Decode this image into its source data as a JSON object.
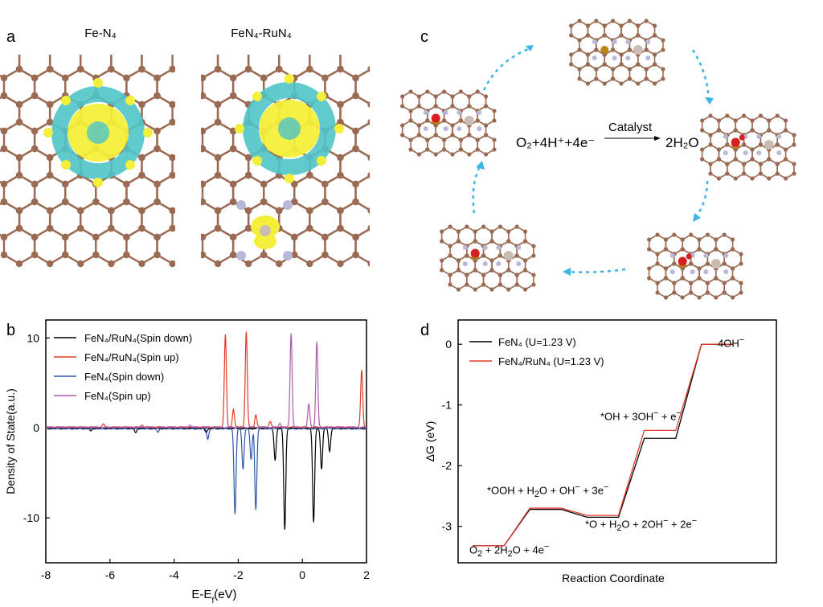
{
  "panels": {
    "a": "a",
    "b": "b",
    "c": "c",
    "d": "d"
  },
  "panel_a": {
    "left_title": "Fe-N₄",
    "right_title": "FeN₄-RuN₄"
  },
  "panel_c": {
    "reaction_left": "O₂+4H⁺+4e⁻",
    "catalyst": "Catalyst",
    "reaction_right": "2H₂O"
  },
  "colors": {
    "carbon": "#9a6b52",
    "nitrogen": "#b8b8d8",
    "metal": "#c9bcb5",
    "fe": "#b8860b",
    "oxygen": "#d42020",
    "yellow_iso": "#f3ef3a",
    "cyan_iso": "#4fc4c8",
    "arrow": "#3cb4e6"
  },
  "chart_data": [
    {
      "type": "line",
      "xlabel": "E-E_f(eV)",
      "ylabel": "Density of State(a.u.)",
      "xlim": [
        -8,
        2
      ],
      "ylim": [
        -15,
        12
      ],
      "xticks": [
        -8,
        -6,
        -4,
        -2,
        0,
        2
      ],
      "yticks": [
        10,
        0,
        -10
      ],
      "legend_position": "top-left",
      "series": [
        {
          "name": "FeN₄/RuN₄(Spin down)",
          "color": "#000000",
          "peaks": [
            [
              -0.55,
              -11.2
            ],
            [
              0.35,
              -10.5
            ],
            [
              -0.85,
              -3.5
            ],
            [
              0.6,
              -4.5
            ],
            [
              0.85,
              -2.5
            ],
            [
              -3.0,
              -0.4
            ],
            [
              -5.2,
              -0.5
            ],
            [
              -6.6,
              -0.3
            ]
          ]
        },
        {
          "name": "FeN₄/RuN₄(Spin up)",
          "color": "#e03c28",
          "peaks": [
            [
              -2.4,
              10.3
            ],
            [
              -1.75,
              10.6
            ],
            [
              -2.15,
              2.0
            ],
            [
              -1.45,
              1.4
            ],
            [
              -1.0,
              0.6
            ],
            [
              1.85,
              6.3
            ],
            [
              -6.2,
              0.35
            ],
            [
              -5.0,
              0.3
            ]
          ]
        },
        {
          "name": "FeN₄(Spin down)",
          "color": "#2e57a8",
          "peaks": [
            [
              -2.1,
              -9.5
            ],
            [
              -1.45,
              -9.0
            ],
            [
              -1.85,
              -4.5
            ],
            [
              -1.6,
              -3.5
            ],
            [
              -2.95,
              -1.2
            ],
            [
              -4.5,
              -0.4
            ]
          ]
        },
        {
          "name": "FeN₄(Spin up)",
          "color": "#b05ab0",
          "peaks": [
            [
              -0.35,
              10.5
            ],
            [
              0.45,
              9.5
            ],
            [
              0.2,
              2.5
            ],
            [
              -0.7,
              0.5
            ],
            [
              -3.5,
              0.3
            ]
          ]
        }
      ]
    },
    {
      "type": "line",
      "xlabel": "Reaction Coordinate",
      "ylabel": "ΔG (eV)",
      "ylim": [
        -3.6,
        0.4
      ],
      "yticks": [
        0,
        -1,
        -2,
        -3
      ],
      "legend_position": "top-left",
      "series": [
        {
          "name": "FeN₄ (U=1.23 V)",
          "color": "#000000",
          "values": [
            -3.32,
            -2.72,
            -2.85,
            -1.55,
            0.0
          ]
        },
        {
          "name": "FeN₄/RuN₄ (U=1.23 V)",
          "color": "#e03c28",
          "values": [
            -3.32,
            -2.7,
            -2.82,
            -1.42,
            0.0
          ]
        }
      ],
      "annotations": [
        {
          "html": "O<sub>2</sub> + 2H<sub>2</sub>O + 4e<sup>−</sup>",
          "text": "O2 + 2H2O + 4e−"
        },
        {
          "html": "*OOH + H<sub>2</sub>O + OH<sup>−</sup> + 3e<sup>−</sup>",
          "text": "*OOH + H2O + OH− + 3e−"
        },
        {
          "html": "*O + H<sub>2</sub>O + 2OH<sup>−</sup> + 2e<sup>−</sup>",
          "text": "*O + H2O + 2OH− + 2e−"
        },
        {
          "html": "*OH + 3OH<sup>−</sup> + e<sup>−</sup>",
          "text": "*OH + 3OH− + e−"
        },
        {
          "html": "4OH<sup>−</sup>",
          "text": "4OH−"
        }
      ]
    }
  ]
}
